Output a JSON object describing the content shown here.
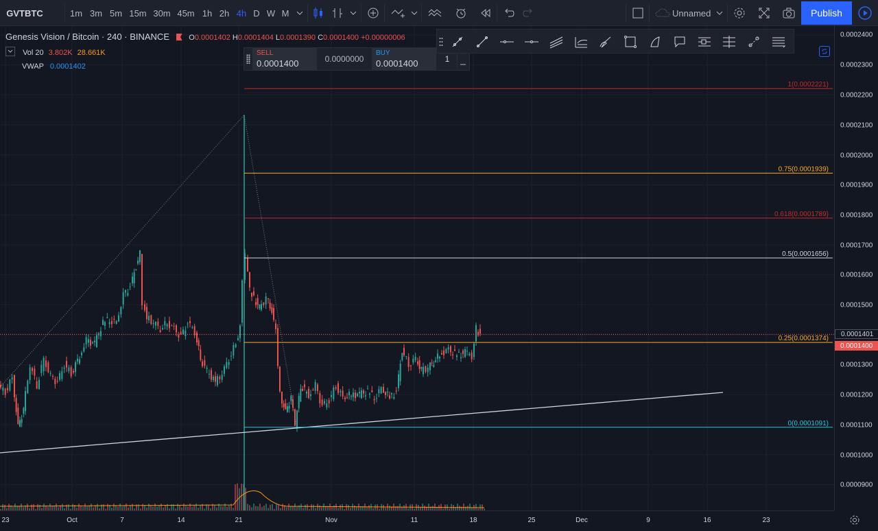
{
  "header": {
    "symbol": "GVTBTC",
    "intervals": [
      "1m",
      "3m",
      "5m",
      "15m",
      "30m",
      "45m",
      "1h",
      "2h",
      "4h",
      "D",
      "W",
      "M"
    ],
    "active_interval": "4h",
    "layout_name": "Unnamed",
    "publish_label": "Publish",
    "icons": [
      "chevron-down-icon",
      "add-circle-icon",
      "indicators-icon",
      "alert-icon",
      "replay-icon",
      "undo-icon",
      "redo-icon",
      "square-icon",
      "cloud-icon",
      "gear-icon",
      "fullscreen-icon",
      "camera-icon",
      "play-icon"
    ]
  },
  "legend": {
    "title": "Genesis Vision / Bitcoin",
    "interval": "240",
    "exchange": "BINANCE",
    "o_label": "O",
    "o": "0.0001402",
    "h_label": "H",
    "h": "0.0001404",
    "l_label": "L",
    "l": "0.0001390",
    "c_label": "C",
    "c": "0.0001400",
    "change": "+0.00000006",
    "vol_name": "Vol 20",
    "vol_value1": "3.802K",
    "vol_value2": "28.661K",
    "vwap_name": "VWAP",
    "vwap_value": "0.0001402"
  },
  "trade_panel": {
    "sell_label": "SELL",
    "sell_price": "0.0001400",
    "spread": "0.0000000",
    "buy_label": "BUY",
    "buy_price": "0.0001400",
    "qty": "1"
  },
  "drawing_toolbar": {
    "icons": [
      "drag-handle-icon",
      "trend-line-icon",
      "ray-icon",
      "horizontal-line-icon",
      "horizontal-ray-icon",
      "parallel-channel-icon",
      "fib-channel-icon",
      "brush-icon",
      "rectangle-icon",
      "path-icon",
      "callout-icon",
      "fib-retracement-icon",
      "fib-extension-icon",
      "long-position-icon",
      "trend-based-fib-icon"
    ]
  },
  "price_axis": {
    "ticks": [
      "0.0002400",
      "0.0002300",
      "0.0002200",
      "0.0002100",
      "0.0002000",
      "0.0001900",
      "0.0001800",
      "0.0001700",
      "0.0001600",
      "0.0001500",
      "0.0001401",
      "0.0001400",
      "0.0001300",
      "0.0001200",
      "0.0001100",
      "0.0001000",
      "0.0000900"
    ],
    "last_price_tag": "0.0001400",
    "crosshair_tag": "0.0001401"
  },
  "time_axis": {
    "labels": [
      "23",
      "Oct",
      "7",
      "14",
      "21",
      "Nov",
      "11",
      "18",
      "25",
      "Dec",
      "9",
      "16",
      "23"
    ]
  },
  "fib_levels": [
    {
      "label": "1(0.0002221)",
      "price": 0.0002221,
      "color": "#c62828"
    },
    {
      "label": "0.75(0.0001939)",
      "price": 0.0001939,
      "color": "#f9a825"
    },
    {
      "label": "0.618(0.0001789)",
      "price": 0.0001789,
      "color": "#c62828"
    },
    {
      "label": "0.5(0.0001656)",
      "price": 0.0001656,
      "color": "#d1d4dc"
    },
    {
      "label": "0.25(0.0001374)",
      "price": 0.0001374,
      "color": "#f9a825"
    },
    {
      "label": "0(0.0001091)",
      "price": 0.0001091,
      "color": "#26c6da"
    }
  ],
  "colors": {
    "background": "#131722",
    "up": "#26a69a",
    "down": "#ef5350",
    "accent": "#2962ff",
    "panel": "#1e222d"
  }
}
